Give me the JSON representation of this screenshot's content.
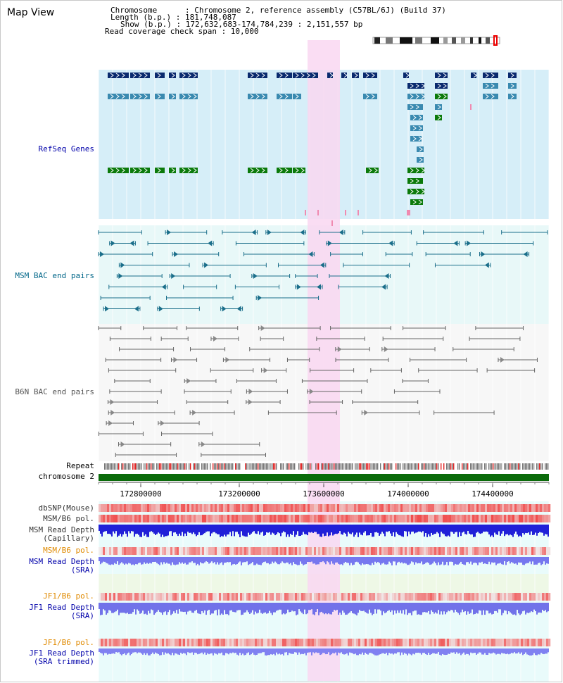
{
  "page": {
    "title": "Map View"
  },
  "summary": {
    "chromosome_line": "Chromosome      : Chromosome 2, reference assembly (C57BL/6J) (Build 37)",
    "length_line": "Length (b.p.) : 181,748,087",
    "show_line": "Show (b.p.) : 172,632,683-174,784,239 : 2,151,557 bp",
    "span_line": "Read coverage check span : 10,000"
  },
  "tracks": {
    "refseq": {
      "label": "RefSeq Genes",
      "color": "#0000aa"
    },
    "msm_bac": {
      "label": "MSM BAC end pairs",
      "color": "#006688"
    },
    "b6n_bac": {
      "label": "B6N BAC end pairs",
      "color": "#555555"
    },
    "repeat": {
      "label": "Repeat"
    },
    "chromosome": {
      "label": "chromosome 2"
    },
    "axis_ticks": [
      "172800000",
      "173200000",
      "173600000",
      "174000000",
      "174400000"
    ],
    "dbsnp": {
      "label": "dbSNP(Mouse)"
    },
    "msm_b6_pol_1": {
      "label": "MSM/B6 pol."
    },
    "msm_depth_cap": {
      "label1": "MSM Read Depth",
      "label2": "(Capillary)",
      "color": "#0000aa"
    },
    "msm_b6_pol_2": {
      "label": "MSM/B6 pol.",
      "color": "#e08a00"
    },
    "msm_depth_sra": {
      "label1": "MSM Read Depth",
      "label2": "(SRA)",
      "color": "#0000aa"
    },
    "jf1_b6_pol_1": {
      "label": "JF1/B6 pol.",
      "color": "#e08a00"
    },
    "jf1_depth_sra": {
      "label1": "JF1 Read Depth",
      "label2": "(SRA)",
      "color": "#0000aa"
    },
    "jf1_b6_pol_2": {
      "label": "JF1/B6 pol.",
      "color": "#e08a00"
    },
    "jf1_depth_trim": {
      "label1": "JF1 Read Depth",
      "label2": "(SRA trimmed)",
      "color": "#0000aa"
    }
  },
  "colors": {
    "refseq_bg": "#d6eef8",
    "bac_bg": "#e8f8f8",
    "highlight": "#f9d7f1",
    "gene_dark": "#0a2a6e",
    "gene_mid": "#3a8ab0",
    "gene_green": "#0b7a0b",
    "chromosome_bar": "#0b6b0b"
  }
}
